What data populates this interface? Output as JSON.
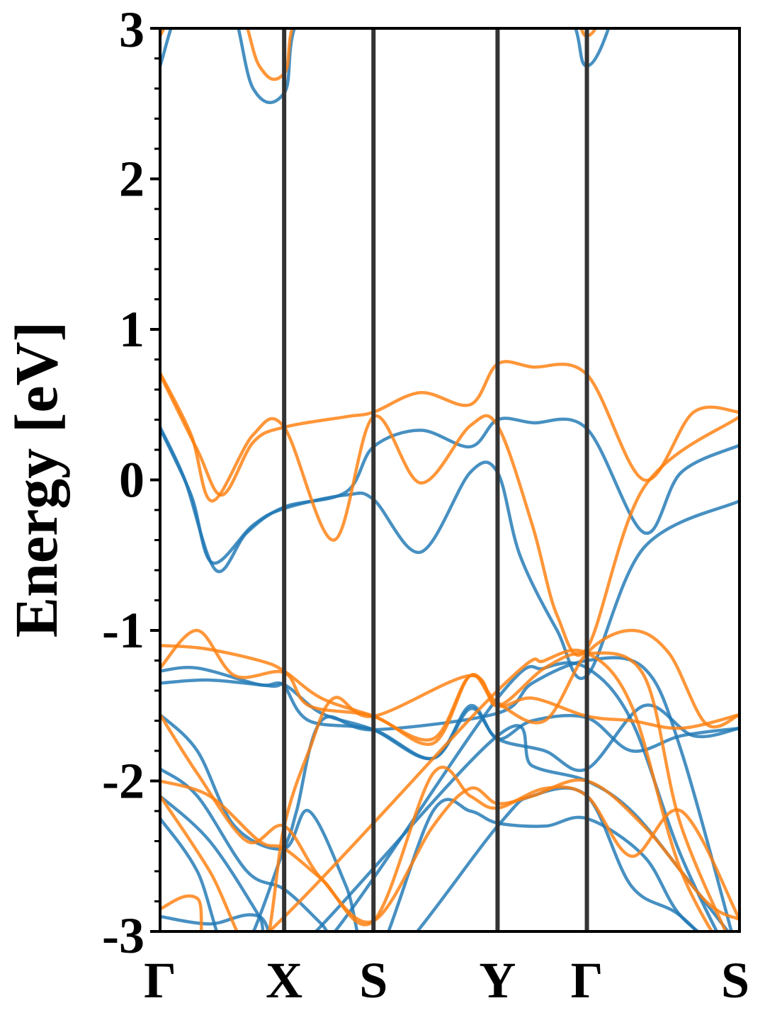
{
  "chart_data": {
    "type": "line",
    "title": "",
    "ylabel": "Energy [eV]",
    "xlabel": "",
    "ylim": [
      -3,
      3
    ],
    "yticks": [
      -3,
      -2,
      -1,
      0,
      1,
      2,
      3
    ],
    "ytick_labels": [
      "-3",
      "-2",
      "-1",
      "0",
      "1",
      "2",
      "3"
    ],
    "ytick_minor_step": 0.2,
    "grid": false,
    "legend": "none",
    "kpath": [
      {
        "label": "Γ",
        "x": 0.0
      },
      {
        "label": "X",
        "x": 1.0
      },
      {
        "label": "S",
        "x": 1.72
      },
      {
        "label": "Y",
        "x": 2.72
      },
      {
        "label": "Γ",
        "x": 3.44
      },
      {
        "label": "S",
        "x": 4.67
      }
    ],
    "series_colors": {
      "spin_a": "#1f77b4",
      "spin_b": "#ff7f0e"
    },
    "series": [
      {
        "color": "#1f77b4",
        "points": [
          [
            0,
            0.35
          ],
          [
            0.2,
            0.0
          ],
          [
            0.45,
            -0.6
          ],
          [
            0.7,
            -0.35
          ],
          [
            1.0,
            -0.18
          ],
          [
            1.5,
            -0.08
          ],
          [
            1.72,
            0.22
          ],
          [
            2.1,
            0.33
          ],
          [
            2.5,
            0.22
          ],
          [
            2.72,
            0.4
          ],
          [
            3.0,
            0.38
          ],
          [
            3.44,
            0.34
          ],
          [
            3.9,
            -0.35
          ],
          [
            4.2,
            0.05
          ],
          [
            4.67,
            0.23
          ]
        ]
      },
      {
        "color": "#1f77b4",
        "points": [
          [
            0,
            0.34
          ],
          [
            0.25,
            -0.1
          ],
          [
            0.42,
            -0.55
          ],
          [
            0.75,
            -0.3
          ],
          [
            1.0,
            -0.19
          ],
          [
            1.5,
            -0.1
          ],
          [
            1.72,
            -0.13
          ],
          [
            2.1,
            -0.48
          ],
          [
            2.5,
            0.05
          ],
          [
            2.72,
            0.05
          ],
          [
            2.9,
            -0.5
          ],
          [
            3.2,
            -1.0
          ],
          [
            3.44,
            -1.3
          ],
          [
            3.9,
            -0.45
          ],
          [
            4.67,
            -0.14
          ]
        ]
      },
      {
        "color": "#1f77b4",
        "points": [
          [
            0,
            -1.27
          ],
          [
            0.3,
            -1.25
          ],
          [
            0.8,
            -1.36
          ],
          [
            1.0,
            -1.36
          ],
          [
            1.3,
            -1.55
          ],
          [
            1.72,
            -1.66
          ],
          [
            2.2,
            -1.85
          ],
          [
            2.5,
            -1.5
          ],
          [
            2.72,
            -1.72
          ],
          [
            3.0,
            -1.6
          ],
          [
            3.44,
            -1.58
          ],
          [
            3.8,
            -1.8
          ],
          [
            4.2,
            -1.7
          ],
          [
            4.67,
            -1.65
          ]
        ]
      },
      {
        "color": "#1f77b4",
        "points": [
          [
            0,
            -1.35
          ],
          [
            0.4,
            -1.33
          ],
          [
            0.9,
            -1.37
          ],
          [
            1.0,
            -1.37
          ],
          [
            1.2,
            -1.6
          ],
          [
            1.72,
            -1.66
          ],
          [
            2.2,
            -1.85
          ],
          [
            2.5,
            -1.52
          ],
          [
            2.72,
            -1.72
          ],
          [
            3.1,
            -1.8
          ],
          [
            3.44,
            -1.92
          ],
          [
            3.9,
            -1.5
          ],
          [
            4.3,
            -1.7
          ],
          [
            4.67,
            -1.65
          ]
        ]
      },
      {
        "color": "#1f77b4",
        "points": [
          [
            0,
            -1.56
          ],
          [
            0.3,
            -1.8
          ],
          [
            0.6,
            -2.3
          ],
          [
            1.0,
            -2.45
          ],
          [
            1.2,
            -2.2
          ],
          [
            1.5,
            -2.7
          ],
          [
            1.72,
            -3.2
          ],
          [
            2.2,
            -2.2
          ],
          [
            2.5,
            -2.2
          ],
          [
            2.72,
            -2.28
          ],
          [
            3.1,
            -2.3
          ],
          [
            3.44,
            -2.25
          ],
          [
            3.9,
            -2.5
          ],
          [
            4.2,
            -2.9
          ],
          [
            4.67,
            -3.2
          ]
        ]
      },
      {
        "color": "#1f77b4",
        "points": [
          [
            0,
            -1.92
          ],
          [
            0.3,
            -2.1
          ],
          [
            0.7,
            -2.6
          ],
          [
            1.0,
            -2.72
          ],
          [
            1.3,
            -2.95
          ],
          [
            1.72,
            -3.3
          ],
          [
            2.72,
            -2.3
          ],
          [
            3.0,
            -2.1
          ],
          [
            3.44,
            -2.1
          ],
          [
            3.8,
            -2.7
          ],
          [
            4.2,
            -2.9
          ],
          [
            4.67,
            -3.3
          ]
        ]
      },
      {
        "color": "#1f77b4",
        "points": [
          [
            0,
            -2.1
          ],
          [
            0.4,
            -2.4
          ],
          [
            0.8,
            -2.9
          ],
          [
            1.0,
            -3.2
          ],
          [
            2.72,
            -1.7
          ],
          [
            3.0,
            -1.9
          ],
          [
            3.44,
            -2.0
          ],
          [
            3.8,
            -2.2
          ],
          [
            4.2,
            -2.6
          ],
          [
            4.67,
            -3.1
          ]
        ]
      },
      {
        "color": "#1f77b4",
        "points": [
          [
            0,
            -2.25
          ],
          [
            0.3,
            -2.6
          ],
          [
            0.6,
            -3.2
          ],
          [
            1.0,
            -2.45
          ],
          [
            1.1,
            -2.2
          ],
          [
            1.3,
            -1.6
          ],
          [
            1.72,
            -1.66
          ],
          [
            2.72,
            -1.55
          ],
          [
            3.0,
            -1.35
          ],
          [
            3.44,
            -1.2
          ],
          [
            3.9,
            -1.25
          ],
          [
            4.2,
            -1.8
          ],
          [
            4.67,
            -3.2
          ]
        ]
      },
      {
        "color": "#1f77b4",
        "points": [
          [
            0,
            -2.9
          ],
          [
            0.4,
            -2.95
          ],
          [
            0.8,
            -2.9
          ],
          [
            1.2,
            -3.2
          ],
          [
            2.72,
            -1.45
          ],
          [
            3.1,
            -1.25
          ],
          [
            3.44,
            -1.25
          ],
          [
            3.8,
            -1.6
          ],
          [
            4.2,
            -2.5
          ],
          [
            4.67,
            -3.3
          ]
        ]
      },
      {
        "color": "#1f77b4",
        "points": [
          [
            0,
            2.75
          ],
          [
            0.2,
            3.2
          ],
          [
            0.55,
            3.2
          ],
          [
            0.75,
            2.6
          ],
          [
            1.0,
            2.57
          ],
          [
            1.3,
            3.2
          ],
          [
            3.1,
            3.2
          ],
          [
            3.44,
            2.75
          ],
          [
            3.7,
            3.2
          ]
        ]
      },
      {
        "color": "#ff7f0e",
        "points": [
          [
            0,
            0.7
          ],
          [
            0.3,
            0.2
          ],
          [
            0.5,
            -0.1
          ],
          [
            0.75,
            0.25
          ],
          [
            1.0,
            0.35
          ],
          [
            1.5,
            0.42
          ],
          [
            1.72,
            0.45
          ],
          [
            2.1,
            0.58
          ],
          [
            2.5,
            0.5
          ],
          [
            2.72,
            0.77
          ],
          [
            3.0,
            0.75
          ],
          [
            3.44,
            0.7
          ],
          [
            3.9,
            0.0
          ],
          [
            4.3,
            0.45
          ],
          [
            4.67,
            0.45
          ]
        ]
      },
      {
        "color": "#ff7f0e",
        "points": [
          [
            0,
            0.71
          ],
          [
            0.25,
            0.3
          ],
          [
            0.42,
            -0.14
          ],
          [
            0.75,
            0.3
          ],
          [
            1.0,
            0.35
          ],
          [
            1.4,
            -0.4
          ],
          [
            1.72,
            0.42
          ],
          [
            2.1,
            -0.02
          ],
          [
            2.5,
            0.36
          ],
          [
            2.72,
            0.36
          ],
          [
            3.0,
            -0.3
          ],
          [
            3.2,
            -0.9
          ],
          [
            3.44,
            -1.12
          ],
          [
            3.9,
            -0.05
          ],
          [
            4.67,
            0.42
          ]
        ]
      },
      {
        "color": "#ff7f0e",
        "points": [
          [
            0,
            -1.1
          ],
          [
            0.35,
            -1.12
          ],
          [
            0.8,
            -1.2
          ],
          [
            1.0,
            -1.27
          ],
          [
            1.3,
            -1.45
          ],
          [
            1.72,
            -1.57
          ],
          [
            2.2,
            -1.72
          ],
          [
            2.5,
            -1.3
          ],
          [
            2.72,
            -1.5
          ],
          [
            3.0,
            -1.45
          ],
          [
            3.44,
            -1.57
          ],
          [
            3.8,
            -1.6
          ],
          [
            4.2,
            -1.65
          ],
          [
            4.67,
            -1.56
          ]
        ]
      },
      {
        "color": "#ff7f0e",
        "points": [
          [
            0,
            -1.25
          ],
          [
            0.3,
            -1.0
          ],
          [
            0.6,
            -1.3
          ],
          [
            1.0,
            -1.28
          ],
          [
            1.2,
            -1.5
          ],
          [
            1.72,
            -1.57
          ],
          [
            2.2,
            -1.75
          ],
          [
            2.5,
            -1.3
          ],
          [
            2.72,
            -1.48
          ],
          [
            3.1,
            -1.6
          ],
          [
            3.44,
            -1.15
          ],
          [
            3.8,
            -1.0
          ],
          [
            4.1,
            -1.15
          ],
          [
            4.4,
            -1.62
          ],
          [
            4.67,
            -1.56
          ]
        ]
      },
      {
        "color": "#ff7f0e",
        "points": [
          [
            0,
            -1.56
          ],
          [
            0.3,
            -1.95
          ],
          [
            0.7,
            -2.4
          ],
          [
            1.0,
            -2.3
          ],
          [
            1.3,
            -2.65
          ],
          [
            1.72,
            -2.93
          ],
          [
            2.2,
            -2.3
          ],
          [
            2.5,
            -2.05
          ],
          [
            2.72,
            -2.15
          ],
          [
            3.0,
            -2.1
          ],
          [
            3.44,
            -2.0
          ],
          [
            3.9,
            -2.3
          ],
          [
            4.4,
            -2.8
          ],
          [
            4.67,
            -2.92
          ]
        ]
      },
      {
        "color": "#ff7f0e",
        "points": [
          [
            0,
            -2.0
          ],
          [
            0.4,
            -2.1
          ],
          [
            0.8,
            -2.4
          ],
          [
            1.0,
            -2.45
          ],
          [
            1.3,
            -2.65
          ],
          [
            1.72,
            -2.93
          ],
          [
            2.2,
            -1.95
          ],
          [
            2.5,
            -2.1
          ],
          [
            2.72,
            -2.18
          ],
          [
            3.1,
            -2.05
          ],
          [
            3.44,
            -2.1
          ],
          [
            3.8,
            -2.5
          ],
          [
            4.2,
            -2.2
          ],
          [
            4.67,
            -2.92
          ]
        ]
      },
      {
        "color": "#ff7f0e",
        "points": [
          [
            0,
            -2.1
          ],
          [
            0.4,
            -2.6
          ],
          [
            0.8,
            -3.2
          ],
          [
            1.0,
            -2.3
          ],
          [
            1.2,
            -1.8
          ],
          [
            1.4,
            -1.45
          ],
          [
            1.72,
            -1.57
          ],
          [
            2.5,
            -1.3
          ],
          [
            2.72,
            -1.5
          ],
          [
            3.1,
            -1.25
          ],
          [
            3.44,
            -1.15
          ],
          [
            3.9,
            -1.3
          ],
          [
            4.2,
            -2.3
          ],
          [
            4.67,
            -3.2
          ]
        ]
      },
      {
        "color": "#ff7f0e",
        "points": [
          [
            0,
            -2.85
          ],
          [
            0.3,
            -2.78
          ],
          [
            0.6,
            -3.2
          ],
          [
            2.72,
            -1.4
          ],
          [
            3.1,
            -1.2
          ],
          [
            3.44,
            -1.15
          ],
          [
            3.8,
            -1.5
          ],
          [
            4.2,
            -2.6
          ],
          [
            4.67,
            -3.3
          ]
        ]
      },
      {
        "color": "#ff7f0e",
        "points": [
          [
            0,
            2.95
          ],
          [
            0.2,
            3.2
          ],
          [
            0.6,
            3.2
          ],
          [
            0.8,
            2.75
          ],
          [
            1.0,
            2.7
          ],
          [
            1.3,
            3.2
          ],
          [
            3.1,
            3.2
          ],
          [
            3.44,
            2.95
          ],
          [
            3.6,
            3.2
          ]
        ]
      }
    ]
  }
}
